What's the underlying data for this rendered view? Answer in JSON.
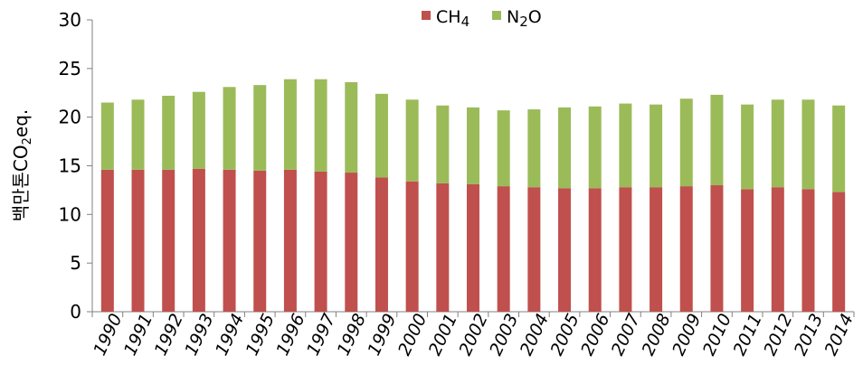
{
  "chart_data": {
    "type": "bar",
    "stacked": true,
    "categories": [
      "1990",
      "1991",
      "1992",
      "1993",
      "1994",
      "1995",
      "1996",
      "1997",
      "1998",
      "1999",
      "2000",
      "2001",
      "2002",
      "2003",
      "2004",
      "2005",
      "2006",
      "2007",
      "2008",
      "2009",
      "2010",
      "2011",
      "2012",
      "2013",
      "2014"
    ],
    "series": [
      {
        "name": "CH4",
        "legend_parts": [
          "CH",
          "4"
        ],
        "color": "#c0504d",
        "values": [
          14.6,
          14.6,
          14.6,
          14.7,
          14.6,
          14.5,
          14.6,
          14.4,
          14.3,
          13.8,
          13.4,
          13.2,
          13.1,
          12.9,
          12.8,
          12.7,
          12.7,
          12.8,
          12.8,
          12.9,
          13.0,
          12.6,
          12.8,
          12.6,
          12.3
        ]
      },
      {
        "name": "N2O",
        "legend_parts": [
          "N",
          "2",
          "O"
        ],
        "color": "#9bbb59",
        "values": [
          6.9,
          7.2,
          7.6,
          7.9,
          8.5,
          8.8,
          9.3,
          9.5,
          9.3,
          8.6,
          8.4,
          8.0,
          7.9,
          7.8,
          8.0,
          8.3,
          8.4,
          8.6,
          8.5,
          9.0,
          9.3,
          8.7,
          9.0,
          9.2,
          8.9
        ]
      }
    ],
    "ylabel_parts": [
      "백만톤CO",
      "2",
      "eq."
    ],
    "ylim": [
      0,
      30
    ],
    "yticks": [
      0,
      5,
      10,
      15,
      20,
      25,
      30
    ],
    "xlabel": "",
    "title": "",
    "grid": false,
    "legend_position": "top-center"
  }
}
